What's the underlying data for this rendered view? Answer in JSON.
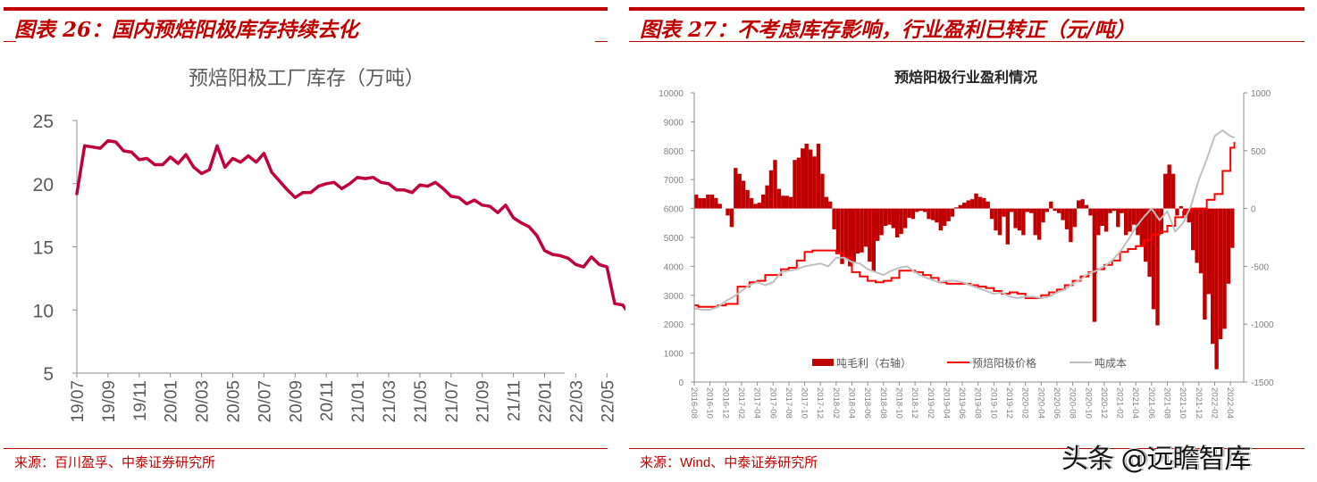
{
  "left_panel": {
    "figure_title": "图表 26：国内预焙阳极库存持续去化",
    "source": "来源：百川盈孚、中泰证券研究所"
  },
  "right_panel": {
    "figure_title": "图表 27：不考虑库存影响，行业盈利已转正（元/吨）",
    "source_prefix": "来源：",
    "source_latin": "Wind",
    "source_suffix": "、中泰证券研究所"
  },
  "watermark": "头条 @远瞻智库",
  "colors": {
    "title_red": "#c00000",
    "inventory_line": "#c0003c",
    "profit_bar": "#c00000",
    "price_line": "#ff0000",
    "cost_line": "#bfbfbf",
    "axis": "#8c8c8c",
    "tick_label": "#595959"
  },
  "chart_data": [
    {
      "type": "line",
      "title": "预焙阳极工厂库存（万吨）",
      "xlabel": "",
      "ylabel": "",
      "ylim": [
        5,
        25
      ],
      "yticks": [
        5,
        10,
        15,
        20,
        25
      ],
      "grid": false,
      "legend": "none",
      "categories": [
        "19/07",
        "19/09",
        "19/11",
        "20/01",
        "20/03",
        "20/05",
        "20/07",
        "20/09",
        "20/11",
        "21/01",
        "21/03",
        "21/05",
        "21/07",
        "21/09",
        "21/11",
        "22/01",
        "22/03",
        "22/05"
      ],
      "series": [
        {
          "name": "预焙阳极工厂库存",
          "x_index": [
            0,
            0.25,
            0.5,
            0.75,
            1,
            1.25,
            1.5,
            1.75,
            2,
            2.25,
            2.5,
            2.75,
            3,
            3.25,
            3.5,
            3.75,
            4,
            4.25,
            4.5,
            4.75,
            5,
            5.25,
            5.5,
            5.75,
            6,
            6.25,
            6.5,
            6.75,
            7,
            7.25,
            7.5,
            7.75,
            8,
            8.25,
            8.5,
            8.75,
            9,
            9.25,
            9.5,
            9.75,
            10,
            10.25,
            10.5,
            10.75,
            11,
            11.25,
            11.5,
            11.75,
            12,
            12.25,
            12.5,
            12.75,
            13,
            13.25,
            13.5,
            13.75,
            14,
            14.25,
            14.5,
            14.75,
            15,
            15.25,
            15.5,
            15.75,
            16,
            16.25,
            16.5,
            16.75,
            17,
            17.25,
            17.5,
            17.75,
            18,
            18.25
          ],
          "values": [
            19.2,
            23.0,
            22.9,
            22.8,
            23.4,
            23.3,
            22.6,
            22.5,
            21.9,
            22.0,
            21.5,
            21.5,
            22.1,
            21.6,
            22.3,
            21.3,
            20.8,
            21.1,
            23.0,
            21.3,
            22.0,
            21.7,
            22.2,
            21.7,
            22.4,
            20.9,
            20.2,
            19.5,
            18.9,
            19.3,
            19.3,
            19.8,
            20.0,
            20.1,
            19.6,
            20.0,
            20.5,
            20.4,
            20.5,
            20.1,
            20.0,
            19.5,
            19.5,
            19.3,
            19.9,
            19.8,
            20.1,
            19.6,
            19.0,
            18.9,
            18.4,
            18.7,
            18.3,
            18.2,
            17.7,
            18.3,
            17.3,
            16.9,
            16.6,
            15.9,
            14.7,
            14.4,
            14.3,
            14.1,
            13.6,
            13.4,
            14.2,
            13.6,
            13.4,
            10.5,
            10.4,
            9.6,
            9.2,
            8.3
          ]
        }
      ]
    },
    {
      "type": "bar+line",
      "title": "预焙阳极行业盈利情况",
      "xlabel": "",
      "ylabel_left": "",
      "ylabel_right": "",
      "ylim_left": [
        0,
        10000
      ],
      "yticks_left": [
        0,
        1000,
        2000,
        3000,
        4000,
        5000,
        6000,
        7000,
        8000,
        9000,
        10000
      ],
      "ylim_right": [
        -1500,
        1000
      ],
      "yticks_right": [
        -1500,
        -1000,
        -500,
        0,
        500,
        1000
      ],
      "grid": false,
      "legend": "bottom-inside",
      "legend_entries": [
        "吨毛利（右轴）",
        "预焙阳极价格",
        "吨成本"
      ],
      "categories": [
        "2016-08",
        "2016-10",
        "2016-12",
        "2017-02",
        "2017-04",
        "2017-06",
        "2017-08",
        "2017-10",
        "2017-12",
        "2018-02",
        "2018-04",
        "2018-06",
        "2018-08",
        "2018-10",
        "2018-12",
        "2019-02",
        "2019-04",
        "2019-06",
        "2019-08",
        "2019-10",
        "2019-12",
        "2020-02",
        "2020-04",
        "2020-06",
        "2020-08",
        "2020-10",
        "2020-12",
        "2021-02",
        "2021-04",
        "2021-06",
        "2021-08",
        "2021-10",
        "2021-12",
        "2022-02",
        "2022-04"
      ],
      "series": [
        {
          "name": "吨毛利（右轴）",
          "axis": "right",
          "type": "bar",
          "x_index": [
            0,
            0.25,
            0.5,
            0.75,
            1,
            1.25,
            1.5,
            1.75,
            2,
            2.25,
            2.5,
            2.75,
            3,
            3.25,
            3.5,
            3.75,
            4,
            4.25,
            4.5,
            4.75,
            5,
            5.25,
            5.5,
            5.75,
            6,
            6.25,
            6.5,
            6.75,
            7,
            7.25,
            7.5,
            7.75,
            8,
            8.25,
            8.5,
            8.75,
            9,
            9.25,
            9.5,
            9.75,
            10,
            10.25,
            10.5,
            10.75,
            11,
            11.25,
            11.5,
            11.75,
            12,
            12.25,
            12.5,
            12.75,
            13,
            13.25,
            13.5,
            13.75,
            14,
            14.25,
            14.5,
            14.75,
            15,
            15.25,
            15.5,
            15.75,
            16,
            16.25,
            16.5,
            16.75,
            17,
            17.25,
            17.5,
            17.75,
            18,
            18.25,
            18.5,
            18.75,
            19,
            19.25,
            19.5,
            19.75,
            20,
            20.25,
            20.5,
            20.75,
            21,
            21.25,
            21.5,
            21.75,
            22,
            22.25,
            22.5,
            22.75,
            23,
            23.25,
            23.5,
            23.75,
            24,
            24.25,
            24.5,
            24.75,
            25,
            25.25,
            25.5,
            25.75,
            26,
            26.25,
            26.5,
            26.75,
            27,
            27.25,
            27.5,
            27.75,
            28,
            28.25,
            28.5,
            28.75,
            29,
            29.25,
            29.5,
            29.75,
            30,
            30.25,
            30.5,
            30.75,
            31,
            31.25,
            31.5,
            31.75,
            32,
            32.25,
            32.5,
            32.75,
            33,
            33.25,
            33.5,
            33.75,
            34,
            34.25
          ],
          "values": [
            120,
            90,
            90,
            120,
            120,
            90,
            40,
            0,
            -60,
            -160,
            350,
            300,
            240,
            160,
            90,
            40,
            50,
            120,
            200,
            330,
            420,
            170,
            110,
            110,
            100,
            420,
            440,
            520,
            560,
            510,
            450,
            560,
            300,
            100,
            60,
            -180,
            -380,
            -480,
            -430,
            -500,
            -470,
            -390,
            -380,
            -330,
            -460,
            -540,
            -280,
            -230,
            -150,
            -140,
            -170,
            -250,
            -220,
            -170,
            -80,
            -90,
            -30,
            -20,
            -30,
            -90,
            -100,
            -120,
            -190,
            -150,
            -110,
            -70,
            10,
            30,
            50,
            70,
            80,
            130,
            100,
            90,
            60,
            -90,
            -190,
            -230,
            -70,
            -310,
            -30,
            -170,
            -190,
            -230,
            -30,
            -40,
            -230,
            -270,
            -120,
            -30,
            60,
            -20,
            -40,
            -100,
            -180,
            -290,
            -160,
            70,
            80,
            30,
            -60,
            -980,
            -230,
            -150,
            -200,
            -40,
            -20,
            -160,
            -40,
            -230,
            -200,
            -140,
            -230,
            -330,
            -460,
            -590,
            -870,
            -1010,
            -220,
            300,
            380,
            300,
            -60,
            20,
            -60,
            -120,
            -360,
            -470,
            -560,
            -960,
            -740,
            -1170,
            -1390,
            -1130,
            -1040,
            -650,
            -340,
            120,
            250
          ],
          "note": "values read approximately from bars; positive above zero, negative below"
        },
        {
          "name": "预焙阳极价格",
          "axis": "left",
          "type": "line",
          "x_index": [
            0,
            0.25,
            0.5,
            1,
            1.5,
            2,
            2.5,
            2.75,
            3,
            3.5,
            4,
            4.5,
            5,
            5.5,
            6,
            6.5,
            7,
            7.5,
            8,
            8.5,
            9,
            9.5,
            10,
            10.5,
            11,
            11.5,
            12,
            12.5,
            13,
            13.5,
            14,
            14.5,
            15,
            15.5,
            16,
            16.5,
            17,
            17.5,
            18,
            18.5,
            19,
            19.5,
            20,
            20.5,
            21,
            21.5,
            22,
            22.5,
            23,
            23.5,
            24,
            24.5,
            25,
            25.5,
            26,
            26.5,
            27,
            27.5,
            28,
            28.5,
            29,
            29.5,
            30,
            30.5,
            31,
            31.5,
            32,
            32.5,
            33,
            33.5,
            34,
            34.25
          ],
          "values": [
            2650,
            2600,
            2600,
            2600,
            2650,
            2700,
            2700,
            3300,
            3300,
            3450,
            3500,
            3700,
            3700,
            3900,
            3950,
            4200,
            4500,
            4550,
            4550,
            4550,
            4450,
            4300,
            3800,
            3650,
            3500,
            3450,
            3500,
            3600,
            3850,
            3850,
            3800,
            3700,
            3600,
            3450,
            3400,
            3400,
            3400,
            3350,
            3300,
            3250,
            3150,
            3050,
            3100,
            3050,
            2900,
            2900,
            3000,
            3100,
            3200,
            3350,
            3500,
            3650,
            3800,
            3900,
            4050,
            4200,
            4500,
            4600,
            4700,
            4900,
            5100,
            5200,
            5400,
            5700,
            5900,
            6000,
            6000,
            6300,
            6500,
            7300,
            8100,
            8300
          ]
        },
        {
          "name": "吨成本",
          "axis": "left",
          "type": "line",
          "x_index": [
            0,
            0.5,
            1,
            1.5,
            2,
            2.5,
            3,
            3.5,
            4,
            4.5,
            5,
            5.5,
            6,
            6.5,
            7,
            7.5,
            8,
            8.5,
            9,
            9.5,
            10,
            10.5,
            11,
            11.5,
            12,
            12.5,
            13,
            13.5,
            14,
            14.5,
            15,
            15.5,
            16,
            16.5,
            17,
            17.5,
            18,
            18.5,
            19,
            19.5,
            20,
            20.5,
            21,
            21.5,
            22,
            22.5,
            23,
            23.5,
            24,
            24.5,
            25,
            25.5,
            26,
            26.5,
            27,
            27.5,
            28,
            28.5,
            29,
            29.5,
            30,
            30.5,
            31,
            31.5,
            32,
            32.5,
            33,
            33.5,
            34,
            34.25
          ],
          "values": [
            2550,
            2500,
            2500,
            2600,
            2800,
            2950,
            3150,
            3350,
            3450,
            3350,
            3450,
            3800,
            3850,
            3900,
            4000,
            4050,
            4100,
            4000,
            4300,
            4300,
            4150,
            4100,
            3900,
            3800,
            3700,
            3850,
            3950,
            4000,
            3800,
            3650,
            3550,
            3450,
            3500,
            3500,
            3450,
            3350,
            3250,
            3150,
            3050,
            3100,
            2950,
            2900,
            2950,
            2950,
            2900,
            2950,
            3100,
            3200,
            3400,
            3550,
            3750,
            3850,
            4000,
            4200,
            4500,
            4900,
            5350,
            5700,
            6000,
            5600,
            5900,
            5200,
            5500,
            6100,
            7000,
            7700,
            8500,
            8700,
            8500,
            8450
          ]
        }
      ]
    }
  ]
}
